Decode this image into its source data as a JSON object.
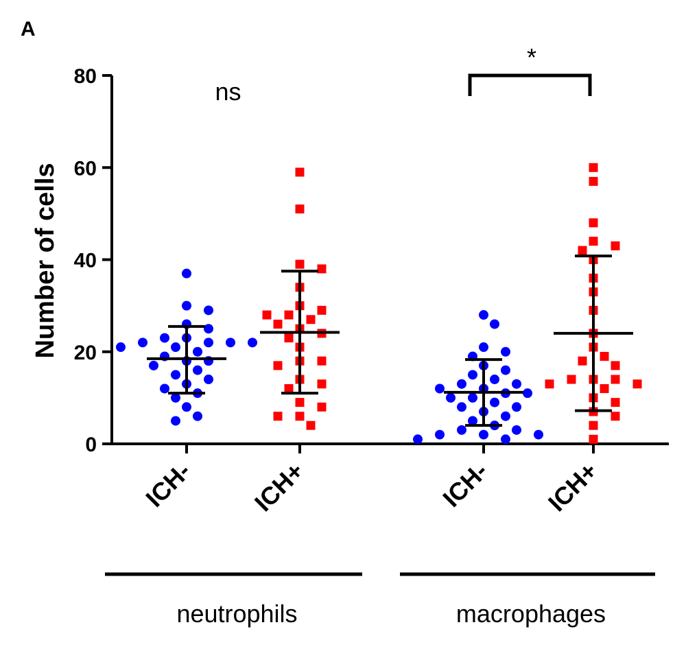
{
  "panel_label": "A",
  "chart_data": {
    "type": "scatter",
    "ylabel": "Number of cells",
    "ylim": [
      0,
      80
    ],
    "yticks": [
      0,
      20,
      40,
      60,
      80
    ],
    "categories": [
      "ICH-",
      "ICH+",
      "ICH-",
      "ICH+"
    ],
    "groups": [
      {
        "name": "neutrophils",
        "categories": [
          0,
          1
        ]
      },
      {
        "name": "macrophages",
        "categories": [
          2,
          3
        ]
      }
    ],
    "series": [
      {
        "category_index": 0,
        "color": "#0000ff",
        "marker": "circle",
        "mean": 18.5,
        "sd_low": 11,
        "sd_high": 25.5,
        "values": [
          37,
          30,
          29,
          26,
          25,
          23,
          23,
          22,
          22,
          22,
          22,
          21,
          21,
          20,
          19,
          18,
          18,
          17,
          16,
          15,
          14,
          13,
          12,
          11,
          10,
          8,
          6,
          5
        ]
      },
      {
        "category_index": 1,
        "color": "#ff0000",
        "marker": "square",
        "mean": 24.2,
        "sd_low": 11,
        "sd_high": 37.5,
        "values": [
          59,
          51,
          39,
          38,
          34,
          30,
          29,
          28,
          28,
          27,
          26,
          25,
          24,
          23,
          21,
          18,
          18,
          17,
          14,
          13,
          12,
          9,
          8,
          6,
          6,
          4
        ]
      },
      {
        "category_index": 2,
        "color": "#0000ff",
        "marker": "circle",
        "mean": 11.2,
        "sd_low": 4,
        "sd_high": 18.3,
        "values": [
          28,
          26,
          21,
          20,
          19,
          17,
          16,
          15,
          14,
          13,
          13,
          12,
          12,
          11,
          11,
          10,
          10,
          9,
          8,
          8,
          7,
          6,
          5,
          4,
          3,
          3,
          2,
          2,
          2,
          1,
          1
        ]
      },
      {
        "category_index": 3,
        "color": "#ff0000",
        "marker": "square",
        "mean": 24,
        "sd_low": 7.2,
        "sd_high": 40.8,
        "values": [
          60,
          57,
          48,
          44,
          43,
          42,
          40,
          36,
          33,
          29,
          24,
          21,
          19,
          18,
          17,
          14,
          14,
          14,
          13,
          13,
          12,
          10,
          9,
          7,
          6,
          4,
          1
        ]
      }
    ],
    "annotations": [
      {
        "text": "ns",
        "category_span": [
          0,
          1
        ],
        "bracket": false
      },
      {
        "text": "*",
        "category_span": [
          2,
          3
        ],
        "bracket": true
      }
    ]
  }
}
